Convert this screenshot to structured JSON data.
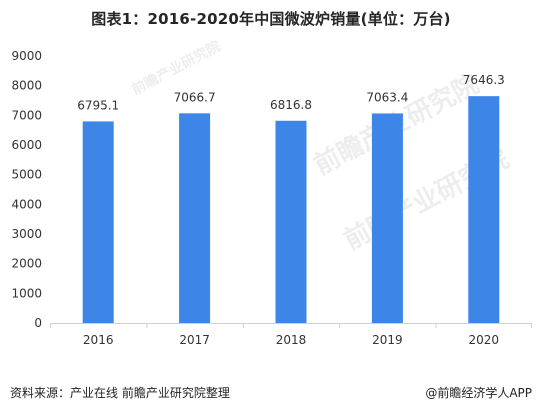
{
  "chart_data": {
    "type": "bar",
    "title": "图表1：2016-2020年中国微波炉销量(单位：万台)",
    "categories": [
      "2016",
      "2017",
      "2018",
      "2019",
      "2020"
    ],
    "values": [
      6795.1,
      7066.7,
      6816.8,
      7063.4,
      7646.3
    ],
    "value_labels": [
      "6795.1",
      "7066.7",
      "6816.8",
      "7063.4",
      "7646.3"
    ],
    "ylim": [
      0,
      9000
    ],
    "yticks": [
      0,
      1000,
      2000,
      3000,
      4000,
      5000,
      6000,
      7000,
      8000,
      9000
    ],
    "xlabel": "",
    "ylabel": "",
    "grid": false,
    "bar_color": "#3D85E6"
  },
  "footer": {
    "source": "资料来源：产业在线 前瞻产业研究院整理",
    "brand": "@前瞻经济学人APP"
  },
  "watermark": {
    "text": "前瞻产业研究院"
  }
}
